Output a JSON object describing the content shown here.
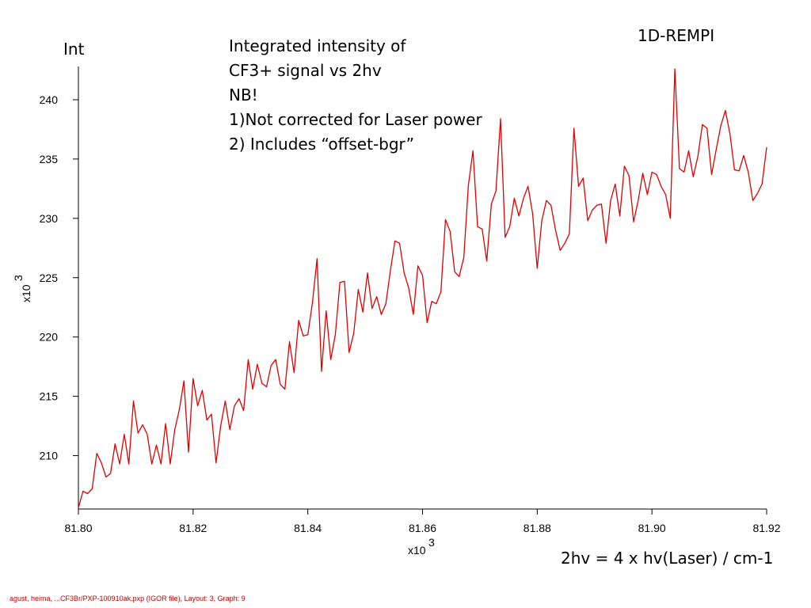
{
  "slide": {
    "title": "1D-REMPI",
    "y_axis_title": "Int",
    "note_lines": [
      "Integrated intensity of",
      "CF3+ signal vs 2hv",
      "NB!",
      "1)Not corrected for Laser power",
      "2) Includes “offset-bgr”"
    ],
    "x_caption": "2hv = 4 x hv(Laser) / cm-1",
    "footer": "agust, heima, ...CF3Br/PXP-100910ak.pxp (IGOR file), Layout: 3, Graph: 9"
  },
  "chart_data": {
    "type": "line",
    "line_color": "#e00000",
    "x_multiplier_label": "x10",
    "x_multiplier_exp": "3",
    "y_multiplier_label": "x10",
    "y_multiplier_exp": "3",
    "xlim": [
      81.8,
      81.92
    ],
    "ylim": [
      205.5,
      242.8
    ],
    "x_ticks": [
      81.8,
      81.82,
      81.84,
      81.86,
      81.88,
      81.9,
      81.92
    ],
    "x_tick_labels": [
      "81.80",
      "81.82",
      "81.84",
      "81.86",
      "81.88",
      "81.90",
      "81.92"
    ],
    "y_ticks": [
      210,
      215,
      220,
      225,
      230,
      235,
      240
    ],
    "y_tick_labels": [
      "210",
      "215",
      "220",
      "225",
      "230",
      "235",
      "240"
    ],
    "grid": false,
    "series": [
      {
        "x": [
          81.8,
          81.8008,
          81.8016,
          81.8024,
          81.8032,
          81.804,
          81.8048,
          81.8056,
          81.8064,
          81.8072,
          81.808,
          81.8088,
          81.8096,
          81.8104,
          81.8112,
          81.812,
          81.8128,
          81.8136,
          81.8144,
          81.8152,
          81.816,
          81.8168,
          81.8176,
          81.8184,
          81.8192,
          81.82,
          81.8208,
          81.8216,
          81.8224,
          81.8232,
          81.824,
          81.8248,
          81.8256,
          81.8264,
          81.8272,
          81.828,
          81.8288,
          81.8296,
          81.8304,
          81.8312,
          81.832,
          81.8328,
          81.8336,
          81.8344,
          81.8352,
          81.836,
          81.8368,
          81.8376,
          81.8384,
          81.8392,
          81.84,
          81.8408,
          81.8416,
          81.8424,
          81.8432,
          81.844,
          81.8448,
          81.8456,
          81.8464,
          81.8472,
          81.848,
          81.8488,
          81.8496,
          81.8504,
          81.8512,
          81.852,
          81.8528,
          81.8536,
          81.8544,
          81.8552,
          81.856,
          81.8568,
          81.8576,
          81.8584,
          81.8592,
          81.86,
          81.8608,
          81.8616,
          81.8624,
          81.8632,
          81.864,
          81.8648,
          81.8656,
          81.8664,
          81.8672,
          81.868,
          81.8688,
          81.8696,
          81.8704,
          81.8712,
          81.872,
          81.8728,
          81.8736,
          81.8744,
          81.8752,
          81.876,
          81.8768,
          81.8776,
          81.8784,
          81.8792,
          81.88,
          81.8808,
          81.8816,
          81.8824,
          81.8832,
          81.884,
          81.8848,
          81.8856,
          81.8864,
          81.8872,
          81.888,
          81.8888,
          81.8896,
          81.8904,
          81.8912,
          81.892,
          81.8928,
          81.8936,
          81.8944,
          81.8952,
          81.896,
          81.8968,
          81.8976,
          81.8984,
          81.8992,
          81.9,
          81.9008,
          81.9016,
          81.9024,
          81.9032,
          81.904,
          81.9048,
          81.9056,
          81.9064,
          81.9072,
          81.908,
          81.9088,
          81.9096,
          81.9104,
          81.9112,
          81.912,
          81.9128,
          81.9136,
          81.9144,
          81.9152,
          81.916,
          81.9168,
          81.9176,
          81.9184,
          81.9192,
          81.92
        ],
        "y": [
          205.6,
          207.0,
          206.8,
          207.2,
          210.2,
          209.4,
          208.2,
          208.5,
          211.0,
          209.3,
          211.8,
          209.3,
          214.6,
          211.9,
          212.6,
          211.8,
          209.3,
          210.9,
          209.3,
          212.7,
          209.3,
          212.2,
          213.9,
          216.3,
          210.3,
          216.5,
          214.2,
          215.5,
          213.0,
          213.5,
          209.4,
          212.5,
          214.6,
          212.2,
          214.2,
          214.8,
          213.8,
          218.1,
          215.6,
          217.7,
          216.1,
          215.8,
          217.6,
          218.1,
          216.0,
          215.6,
          219.6,
          217.0,
          221.4,
          220.1,
          220.2,
          222.9,
          226.6,
          217.1,
          222.2,
          218.1,
          220.2,
          224.6,
          224.7,
          218.7,
          220.3,
          224.0,
          222.1,
          225.4,
          222.4,
          223.4,
          221.9,
          222.8,
          225.6,
          228.1,
          227.9,
          225.4,
          224.1,
          221.9,
          226.0,
          225.2,
          221.2,
          223.0,
          222.8,
          223.8,
          229.9,
          228.9,
          225.5,
          225.1,
          226.7,
          232.8,
          235.7,
          229.3,
          229.1,
          226.4,
          231.2,
          232.3,
          238.4,
          228.4,
          229.3,
          231.7,
          230.2,
          231.7,
          232.7,
          230.4,
          225.8,
          229.8,
          231.5,
          231.1,
          229.0,
          227.3,
          227.9,
          228.7,
          237.6,
          232.7,
          233.4,
          229.8,
          230.7,
          231.1,
          231.2,
          227.9,
          231.5,
          232.9,
          230.2,
          234.4,
          233.6,
          229.7,
          231.5,
          233.8,
          232.0,
          233.9,
          233.7,
          232.7,
          232.0,
          230.0,
          242.6,
          234.2,
          233.9,
          235.7,
          233.5,
          235.2,
          237.9,
          237.6,
          233.7,
          235.8,
          237.8,
          239.1,
          237.1,
          234.1,
          234.0,
          235.3,
          233.9,
          231.5,
          232.1,
          232.9,
          236.0
        ]
      }
    ]
  }
}
